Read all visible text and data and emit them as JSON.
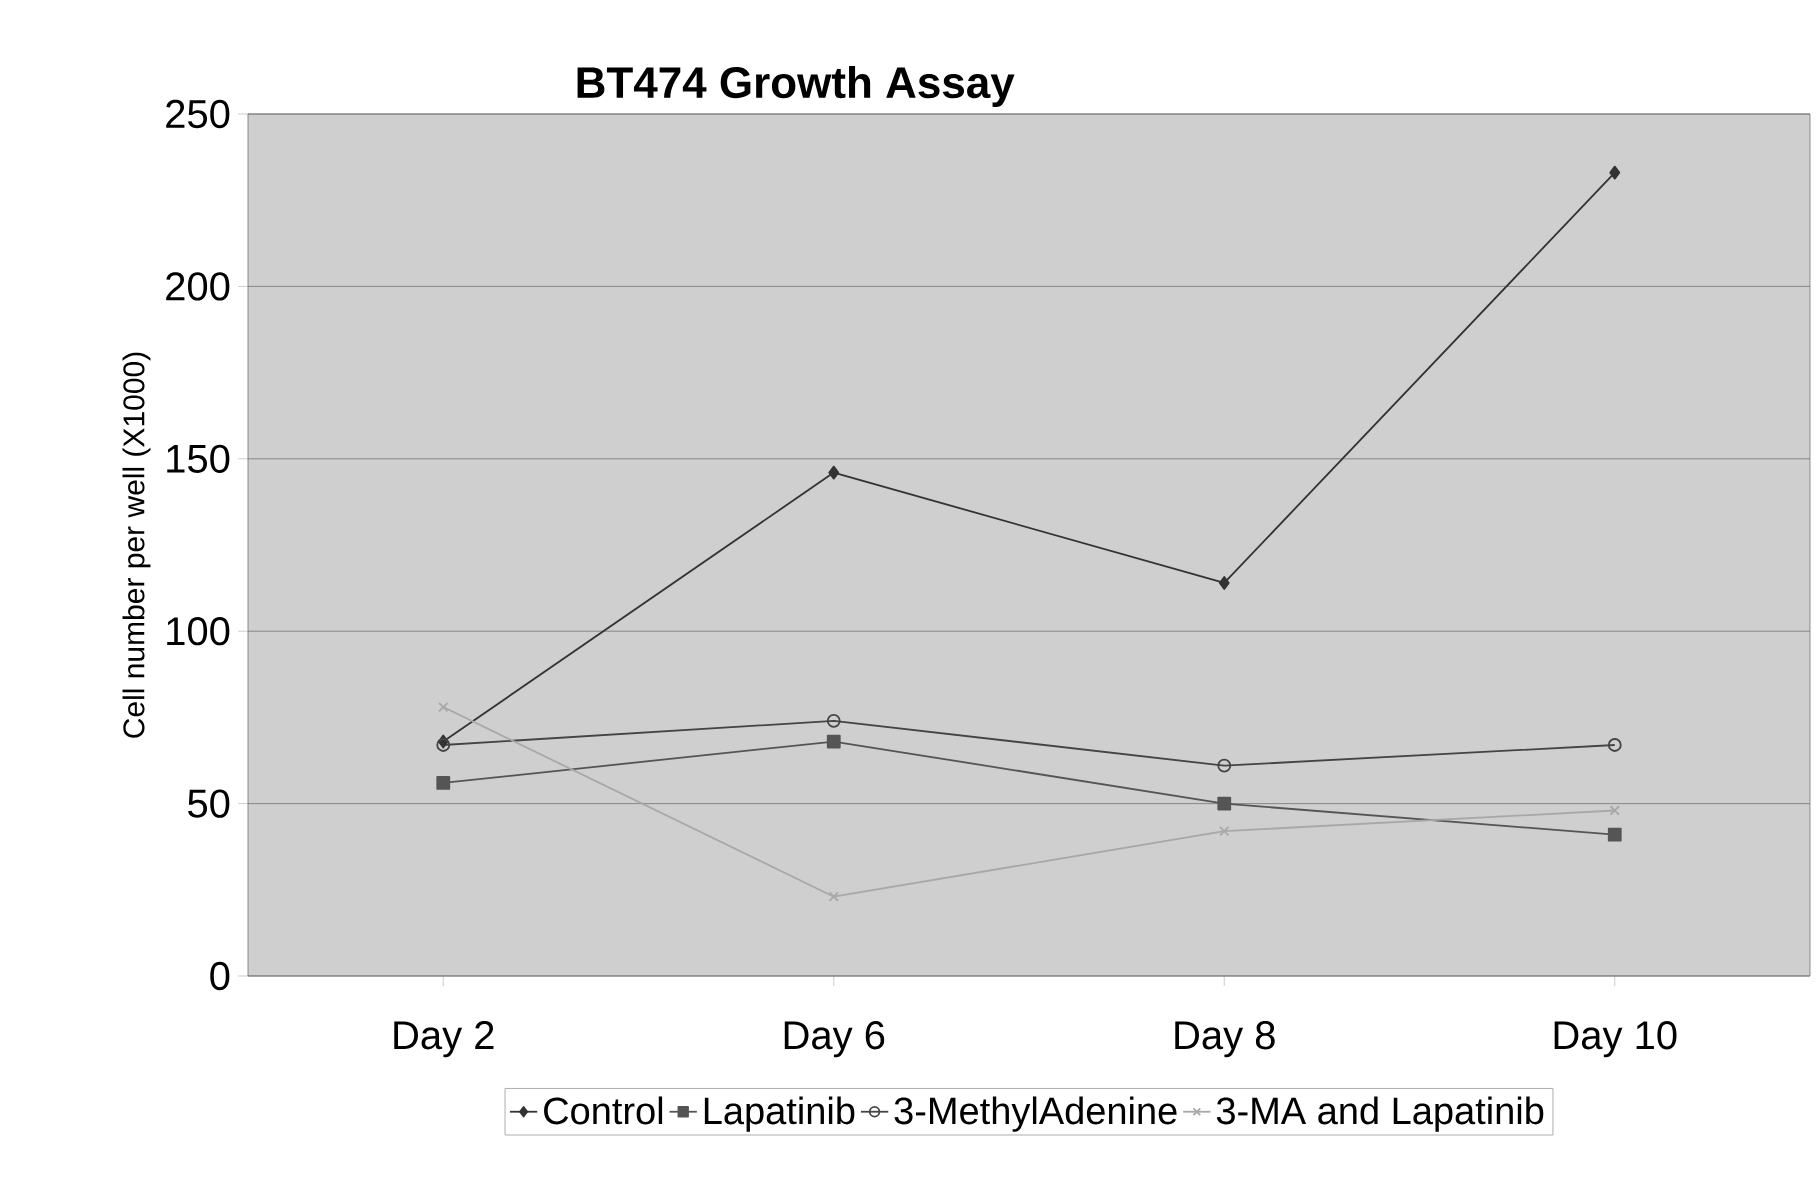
{
  "chart_data": {
    "type": "line",
    "title": "BT474 Growth Assay",
    "ylabel": "Cell number per well (X1000)",
    "categories": [
      "Day 2",
      "Day 6",
      "Day 8",
      "Day 10"
    ],
    "series": [
      {
        "name": "Control",
        "color": "#333333",
        "marker": "diamond",
        "values": [
          68,
          146,
          114,
          233
        ]
      },
      {
        "name": "Lapatinib",
        "color": "#555555",
        "marker": "square",
        "values": [
          56,
          68,
          50,
          41
        ]
      },
      {
        "name": "3-MethylAdenine",
        "color": "#444444",
        "marker": "circle",
        "values": [
          67,
          74,
          61,
          67
        ]
      },
      {
        "name": "3-MA and Lapatinib",
        "color": "#a8a8a8",
        "marker": "cross",
        "values": [
          78,
          23,
          42,
          48
        ]
      }
    ],
    "ylim": [
      0,
      250
    ],
    "yticks": [
      0,
      50,
      100,
      150,
      200,
      250
    ],
    "grid": "y",
    "legend": "bottom",
    "line_style": "solid"
  }
}
